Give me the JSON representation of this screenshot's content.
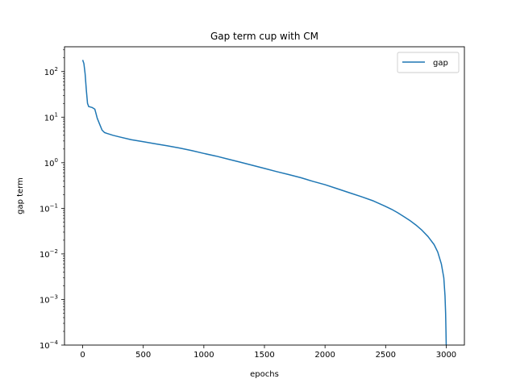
{
  "chart_data": {
    "type": "line",
    "title": "Gap term cup with CM",
    "xlabel": "epochs",
    "ylabel": "gap term",
    "xlim": [
      -150,
      3150
    ],
    "ylim": [
      0.0001,
      350
    ],
    "yscale": "log",
    "grid": false,
    "legend_position": "top-right",
    "x_ticks": [
      0,
      500,
      1000,
      1500,
      2000,
      2500,
      3000
    ],
    "x_tick_labels": [
      "0",
      "500",
      "1000",
      "1500",
      "2000",
      "2500",
      "3000"
    ],
    "y_ticks": [
      0.0001,
      0.001,
      0.01,
      0.1,
      1,
      10,
      100
    ],
    "y_tick_labels": [
      {
        "base": "10",
        "exp": "−4"
      },
      {
        "base": "10",
        "exp": "−3"
      },
      {
        "base": "10",
        "exp": "−2"
      },
      {
        "base": "10",
        "exp": "−1"
      },
      {
        "base": "10",
        "exp": "0"
      },
      {
        "base": "10",
        "exp": "1"
      },
      {
        "base": "10",
        "exp": "2"
      }
    ],
    "series": [
      {
        "name": "gap",
        "color": "#1f77b4",
        "x": [
          0,
          10,
          20,
          30,
          40,
          50,
          60,
          80,
          100,
          110,
          120,
          140,
          160,
          180,
          200,
          250,
          300,
          400,
          500,
          600,
          700,
          800,
          900,
          1000,
          1100,
          1200,
          1300,
          1400,
          1500,
          1600,
          1700,
          1800,
          1900,
          2000,
          2100,
          2200,
          2300,
          2400,
          2500,
          2550,
          2600,
          2650,
          2700,
          2750,
          2800,
          2850,
          2900,
          2930,
          2960,
          2980,
          2990,
          2995,
          2998,
          3000
        ],
        "y": [
          180,
          150,
          90,
          40,
          20,
          17,
          16.8,
          16.2,
          15,
          12,
          9.5,
          7,
          5.2,
          4.6,
          4.4,
          4.0,
          3.7,
          3.2,
          2.9,
          2.6,
          2.35,
          2.1,
          1.85,
          1.6,
          1.4,
          1.2,
          1.03,
          0.88,
          0.75,
          0.64,
          0.55,
          0.47,
          0.39,
          0.33,
          0.27,
          0.22,
          0.18,
          0.145,
          0.11,
          0.095,
          0.08,
          0.066,
          0.054,
          0.043,
          0.033,
          0.024,
          0.016,
          0.011,
          0.006,
          0.003,
          0.0012,
          0.0005,
          0.0002,
          0.0001
        ]
      }
    ]
  }
}
